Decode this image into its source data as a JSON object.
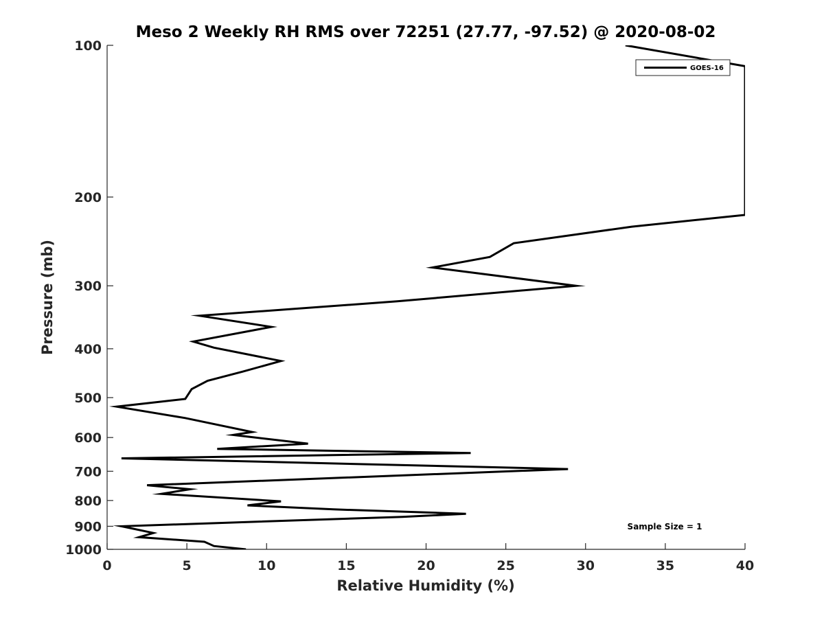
{
  "chart_data": {
    "type": "line",
    "title": "Meso 2 Weekly RH RMS over 72251 (27.77, -97.52) @ 2020-08-02",
    "xlabel": "Relative Humidity (%)",
    "ylabel": "Pressure (mb)",
    "xlim": [
      0,
      40
    ],
    "ylim": [
      100,
      1000
    ],
    "yscale": "log",
    "y_reversed": true,
    "grid": false,
    "legend_position": "top-right",
    "x_ticks": [
      0,
      5,
      10,
      15,
      20,
      25,
      30,
      35,
      40
    ],
    "x_tick_labels": [
      "0",
      "5",
      "10",
      "15",
      "20",
      "25",
      "30",
      "35",
      "40"
    ],
    "y_ticks": [
      100,
      200,
      300,
      400,
      500,
      600,
      700,
      800,
      900,
      1000
    ],
    "y_tick_labels": [
      "100",
      "200",
      "300",
      "400",
      "500",
      "600",
      "700",
      "800",
      "900",
      "1000"
    ],
    "annotation": "Sample Size = 1",
    "series": [
      {
        "name": "GOES-16",
        "color": "#000000",
        "x": [
          8.7,
          6.7,
          6.1,
          2.0,
          2.9,
          0.9,
          18.5,
          22.5,
          14.2,
          8.8,
          10.9,
          3.4,
          5.2,
          2.5,
          28.9,
          0.9,
          22.8,
          6.9,
          12.6,
          7.9,
          9.1,
          4.9,
          0.6,
          4.9,
          5.3,
          6.3,
          8.5,
          10.9,
          6.7,
          5.4,
          10.3,
          5.8,
          18.2,
          29.4,
          20.4,
          24.0,
          25.5,
          32.9,
          40.0,
          40.0,
          32.5
        ],
        "y": [
          1000,
          985,
          966,
          946,
          928,
          900,
          862,
          850,
          833,
          818,
          803,
          776,
          760,
          746,
          693,
          660,
          644,
          632,
          617,
          593,
          585,
          549,
          521,
          503,
          481,
          463,
          444,
          423,
          398,
          387,
          362,
          344,
          322,
          300,
          276,
          263,
          247,
          229,
          217,
          110,
          100
        ]
      }
    ]
  }
}
